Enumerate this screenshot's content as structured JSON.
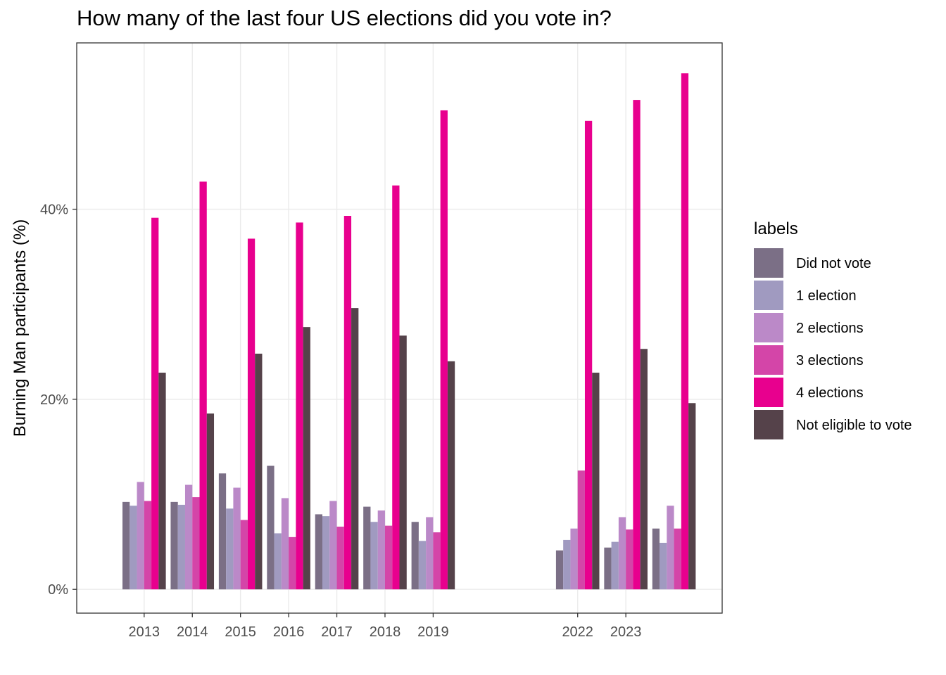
{
  "chart_data": {
    "type": "bar",
    "title": "How many of the last four US elections did you vote in?",
    "xlabel": "",
    "ylabel": "Burning Man participants (%)",
    "ylim": [
      -2.5,
      57.5
    ],
    "yticks": [
      0,
      20,
      40
    ],
    "ytick_labels": [
      "0%",
      "20%",
      "40%"
    ],
    "grid": true,
    "x": [
      2013,
      2014,
      2015,
      2016,
      2017,
      2018,
      2019,
      2022,
      2023,
      2024
    ],
    "xticks": [
      2013,
      2014,
      2015,
      2016,
      2017,
      2018,
      2019,
      2022,
      2023
    ],
    "xtick_labels": [
      "2013",
      "2014",
      "2015",
      "2016",
      "2017",
      "2018",
      "2019",
      "2022",
      "2023"
    ],
    "xlim": [
      2011.6,
      2025.0
    ],
    "legend": {
      "title": "labels",
      "placement": "right"
    },
    "series": [
      {
        "name": "Did not vote",
        "color": "#7b6f86",
        "values": [
          9.2,
          9.2,
          12.2,
          13.0,
          7.9,
          8.7,
          7.1,
          4.1,
          4.4,
          6.4
        ]
      },
      {
        "name": "1 election",
        "color": "#a09ac0",
        "values": [
          8.8,
          8.9,
          8.5,
          5.9,
          7.7,
          7.1,
          5.1,
          5.2,
          5.0,
          4.9
        ]
      },
      {
        "name": "2 elections",
        "color": "#bb89c8",
        "values": [
          11.3,
          11.0,
          10.7,
          9.6,
          9.3,
          8.3,
          7.6,
          6.4,
          7.6,
          8.8
        ]
      },
      {
        "name": "3 elections",
        "color": "#d445a8",
        "values": [
          9.3,
          9.7,
          7.3,
          5.5,
          6.6,
          6.7,
          6.0,
          12.5,
          6.3,
          6.4
        ]
      },
      {
        "name": "4 elections",
        "color": "#e8008e",
        "values": [
          39.1,
          42.9,
          36.9,
          38.6,
          39.3,
          42.5,
          50.4,
          49.3,
          51.5,
          54.3
        ]
      },
      {
        "name": "Not eligible to vote",
        "color": "#55424a",
        "values": [
          22.8,
          18.5,
          24.8,
          27.6,
          29.6,
          26.7,
          24.0,
          22.8,
          25.3,
          19.6
        ]
      }
    ]
  }
}
